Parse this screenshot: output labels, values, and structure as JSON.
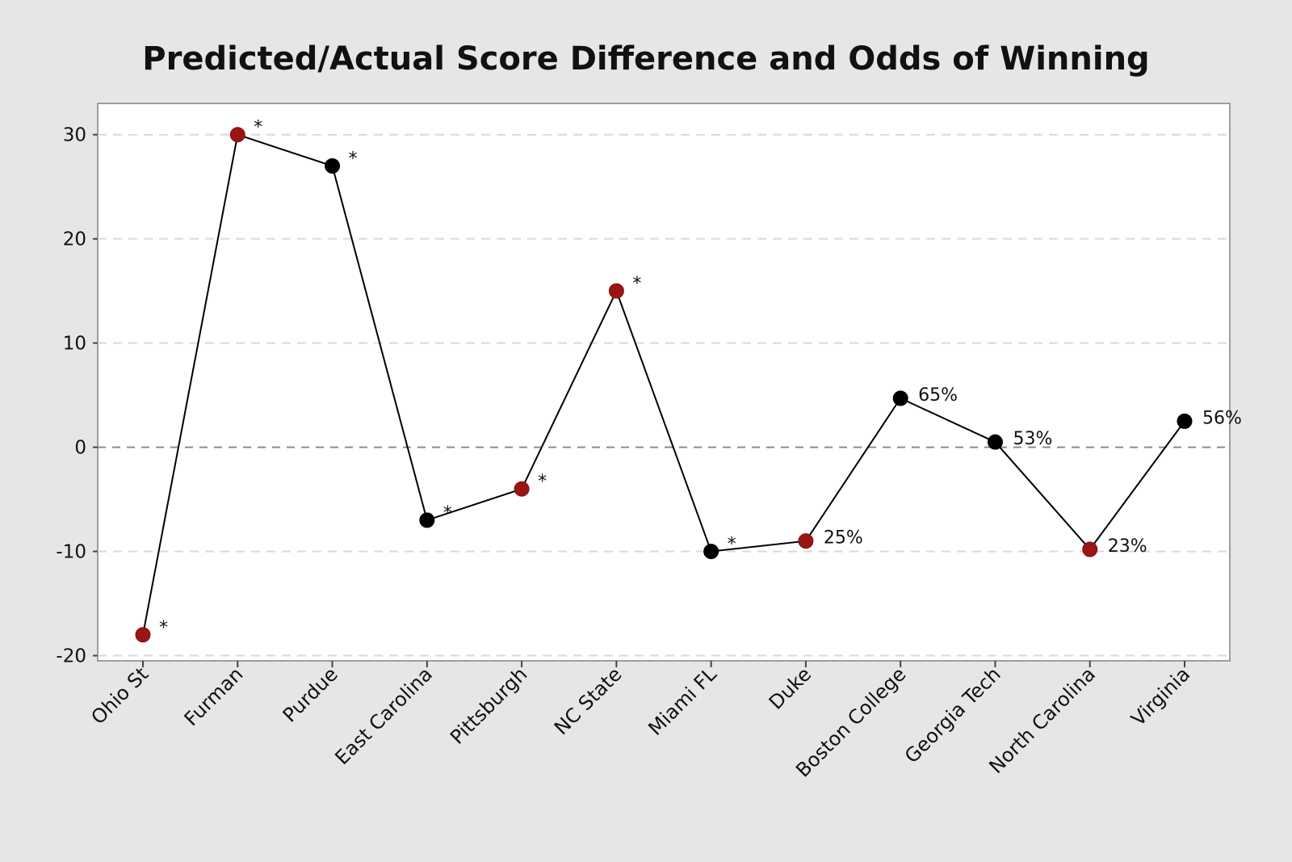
{
  "chart_data": {
    "type": "line",
    "title": "Predicted/Actual Score Difference and Odds of Winning",
    "xlabel": "",
    "ylabel": "",
    "categories": [
      "Ohio St",
      "Furman",
      "Purdue",
      "East Carolina",
      "Pittsburgh",
      "NC State",
      "Miami FL",
      "Duke",
      "Boston College",
      "Georgia Tech",
      "North Carolina",
      "Virginia"
    ],
    "series": [
      {
        "values": [
          -18,
          30,
          27,
          -7,
          -4,
          15,
          -10,
          -9,
          4.7,
          0.5,
          -9.8,
          2.5
        ],
        "point_colors": [
          "#9b1515",
          "#9b1515",
          "#000000",
          "#000000",
          "#9b1515",
          "#9b1515",
          "#000000",
          "#9b1515",
          "#000000",
          "#000000",
          "#9b1515",
          "#000000"
        ],
        "point_labels": [
          "*",
          "*",
          "*",
          "*",
          "*",
          "*",
          "*",
          "25%",
          "65%",
          "53%",
          "23%",
          "56%"
        ]
      }
    ],
    "ylim": [
      -20.5,
      33
    ],
    "yticks": [
      30,
      20,
      10,
      0,
      -10,
      -20
    ],
    "grid": "horizontal-dashed",
    "reference_line": 0,
    "colors": {
      "background": "#e6e6e6",
      "plot_background": "#ffffff",
      "line": "#000000",
      "red_point": "#9b1515",
      "black_point": "#000000",
      "grid": "#d9d9d9",
      "zero_line": "#8c8c8c"
    }
  }
}
